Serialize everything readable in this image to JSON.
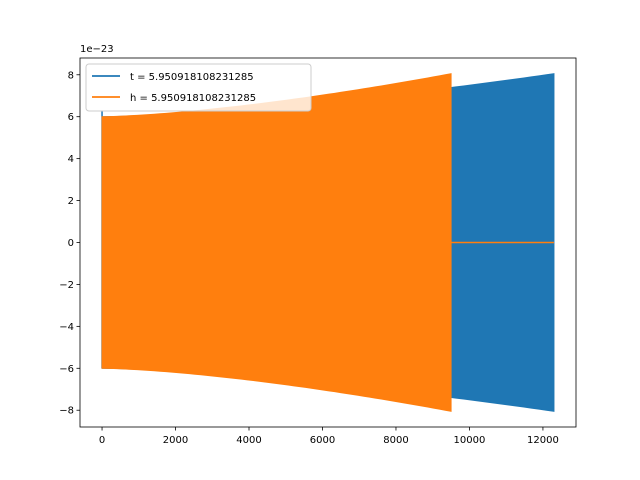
{
  "chart_data": {
    "type": "line",
    "title": "",
    "xlabel": "",
    "ylabel": "",
    "xlim": [
      -600,
      12900
    ],
    "ylim": [
      -8.8,
      8.8
    ],
    "y_offset_label": "1e−23",
    "x_ticks": [
      0,
      2000,
      4000,
      6000,
      8000,
      10000,
      12000
    ],
    "x_tick_labels": [
      "0",
      "2000",
      "4000",
      "6000",
      "8000",
      "10000",
      "12000"
    ],
    "y_ticks": [
      -8,
      -6,
      -4,
      -2,
      0,
      2,
      4,
      6,
      8
    ],
    "y_tick_labels": [
      "−8",
      "−6",
      "−4",
      "−2",
      "0",
      "2",
      "4",
      "6",
      "8"
    ],
    "grid": false,
    "legend_position": "upper-left",
    "series": [
      {
        "name": "t = 5.950918108231285",
        "color": "#1f77b4",
        "x_start": 0,
        "x_end": 12300,
        "envelope_start": 6.0,
        "envelope_end": 8.05,
        "initial_spike": 6.3
      },
      {
        "name": "h = 5.950918108231285",
        "color": "#ff7f0e",
        "x_start": 0,
        "x_end": 9500,
        "envelope_start": 6.0,
        "envelope_end": 8.05,
        "zero_after_to": 12300,
        "initial_spike": 0
      }
    ]
  }
}
